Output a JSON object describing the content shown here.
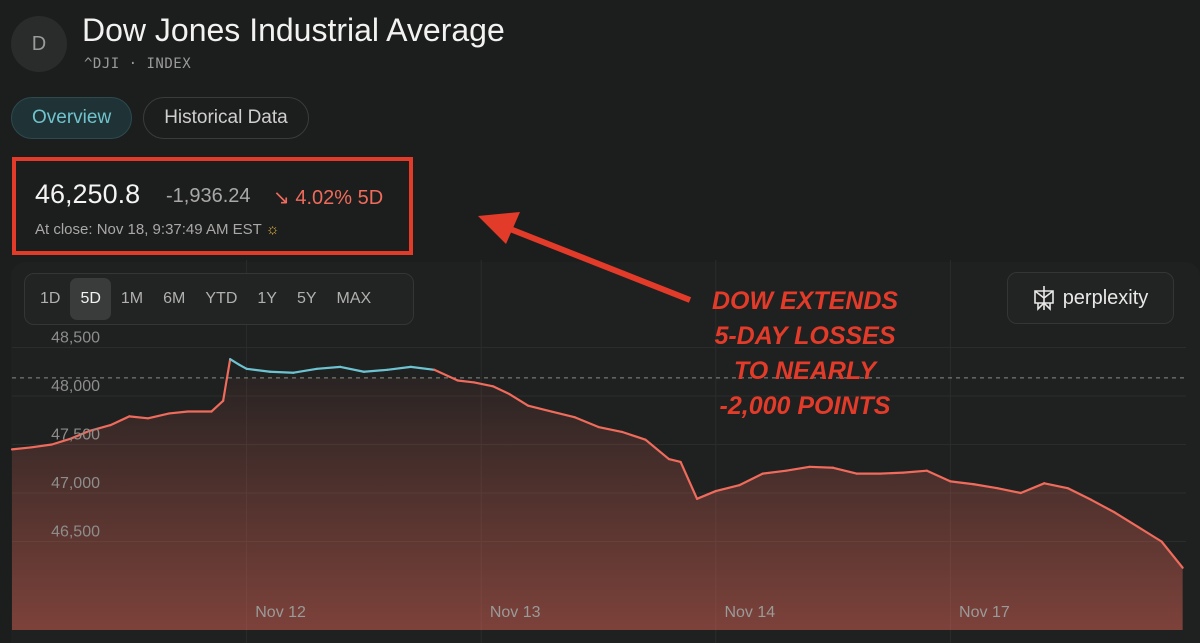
{
  "header": {
    "avatar_letter": "D",
    "title": "Dow Jones Industrial Average",
    "subtitle": "^DJI · INDEX"
  },
  "tabs": [
    {
      "label": "Overview",
      "active": true
    },
    {
      "label": "Historical Data",
      "active": false
    }
  ],
  "quote": {
    "price": "46,250.8",
    "change": "-1,936.24",
    "change_pct": "↘ 4.02% 5D",
    "close_time": "At close: Nov 18, 9:37:49 AM EST",
    "session_icon": "sun-icon"
  },
  "ranges": [
    {
      "label": "1D",
      "active": false
    },
    {
      "label": "5D",
      "active": true
    },
    {
      "label": "1M",
      "active": false
    },
    {
      "label": "6M",
      "active": false
    },
    {
      "label": "YTD",
      "active": false
    },
    {
      "label": "1Y",
      "active": false
    },
    {
      "label": "5Y",
      "active": false
    },
    {
      "label": "MAX",
      "active": false
    }
  ],
  "brand": {
    "label": "perplexity",
    "icon": "perplexity-logo-icon"
  },
  "annotation": "DOW EXTENDS\n5-DAY LOSSES\nTO NEARLY\n-2,000 POINTS",
  "colors": {
    "up": "#6ec3d1",
    "down": "#ef6b5b",
    "annotation": "#e23b2a"
  },
  "chart_data": {
    "type": "line",
    "y_ticks": [
      "48,500",
      "48,000",
      "47,500",
      "47,000",
      "46,500"
    ],
    "y_tick_values": [
      48500,
      48000,
      47500,
      47000,
      46500
    ],
    "x_ticks": [
      "Nov 12",
      "Nov 13",
      "Nov 14",
      "Nov 17"
    ],
    "ylim": [
      46200,
      48700
    ],
    "baseline": 48187,
    "x_range": [
      0,
      5
    ],
    "x_tick_positions": [
      1,
      2,
      3,
      4
    ],
    "grid": true,
    "series": [
      {
        "x": [
          0,
          0.08,
          0.17,
          0.25,
          0.33,
          0.42,
          0.5,
          0.58,
          0.67,
          0.75,
          0.85,
          0.9,
          0.93,
          0.97,
          1.0,
          1.1,
          1.2,
          1.3,
          1.4,
          1.5,
          1.6,
          1.7,
          1.8,
          1.9,
          1.97,
          2.05,
          2.12,
          2.2,
          2.3,
          2.4,
          2.5,
          2.6,
          2.7,
          2.8,
          2.85,
          2.92,
          3.0,
          3.1,
          3.2,
          3.3,
          3.4,
          3.5,
          3.6,
          3.7,
          3.8,
          3.9,
          4.0,
          4.1,
          4.2,
          4.3,
          4.4,
          4.5,
          4.6,
          4.7,
          4.8,
          4.9,
          4.99
        ],
        "values": [
          47450,
          47470,
          47500,
          47560,
          47640,
          47700,
          47790,
          47770,
          47820,
          47840,
          47840,
          47950,
          48380,
          48320,
          48280,
          48250,
          48240,
          48280,
          48300,
          48250,
          48270,
          48300,
          48270,
          48160,
          48140,
          48100,
          48020,
          47900,
          47840,
          47780,
          47680,
          47630,
          47550,
          47350,
          47320,
          46940,
          47020,
          47080,
          47200,
          47230,
          47270,
          47260,
          47200,
          47200,
          47210,
          47230,
          47120,
          47090,
          47050,
          47000,
          47100,
          47050,
          46930,
          46800,
          46650,
          46500,
          46230
        ]
      }
    ]
  }
}
